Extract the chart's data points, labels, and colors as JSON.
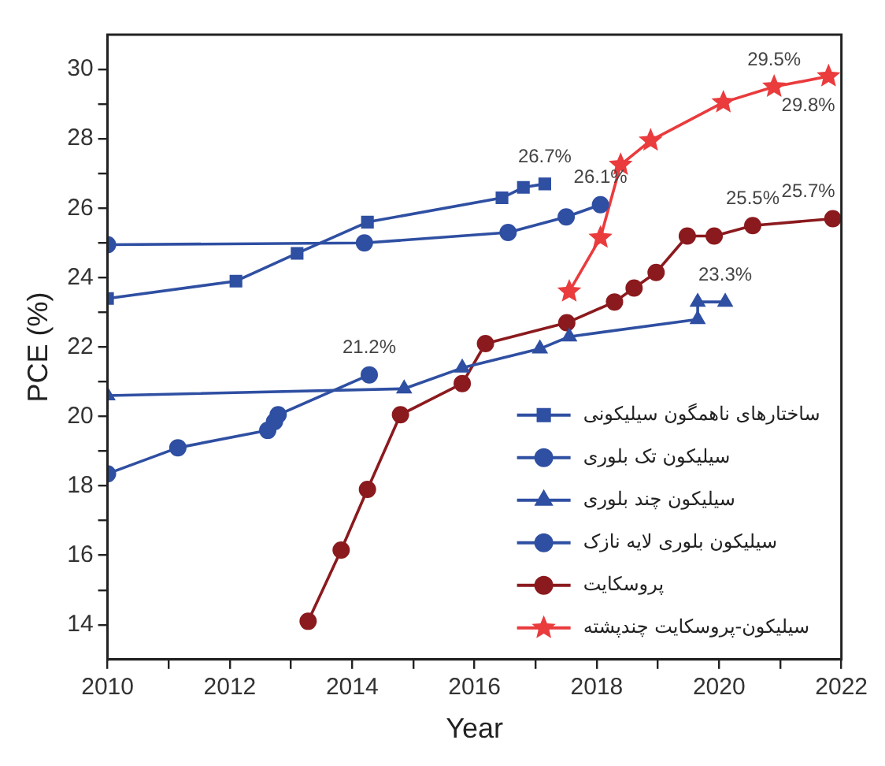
{
  "chart_data": {
    "type": "line",
    "xlabel": "Year",
    "ylabel": "PCE (%)",
    "xlim": [
      2010,
      2022
    ],
    "ylim": [
      13,
      31
    ],
    "xticks": [
      2010,
      {
        "value": 2011,
        "label": null
      },
      2012,
      {
        "value": 2013,
        "label": null
      },
      2014,
      {
        "value": 2015,
        "label": null
      },
      2016,
      {
        "value": 2017,
        "label": null
      },
      2018,
      {
        "value": 2019,
        "label": null
      },
      2020,
      {
        "value": 2021,
        "label": null
      },
      2022
    ],
    "yticks": [
      14,
      {
        "value": 15,
        "label": null
      },
      16,
      {
        "value": 17,
        "label": null
      },
      18,
      {
        "value": 19,
        "label": null
      },
      20,
      {
        "value": 21,
        "label": null
      },
      22,
      {
        "value": 23,
        "label": null
      },
      24,
      {
        "value": 25,
        "label": null
      },
      26,
      {
        "value": 27,
        "label": null
      },
      28,
      {
        "value": 29,
        "label": null
      },
      30
    ],
    "grid": false,
    "legend": "bottom right",
    "series": [
      {
        "name": "ساختارهای ناهمگون سیلیکونی",
        "color": "#2f4fa2",
        "marker": "square",
        "x": [
          2010,
          2012.1,
          2013.1,
          2014.25,
          2016.45,
          2016.8,
          2017.15
        ],
        "values": [
          23.4,
          23.9,
          24.7,
          25.6,
          26.3,
          26.6,
          26.7
        ],
        "value_labels": [
          null,
          null,
          null,
          null,
          null,
          null,
          "26.7%"
        ]
      },
      {
        "name": "سیلیکون تک بلوری",
        "color": "#2f4fa2",
        "marker": "circle",
        "x": [
          2010,
          2014.2,
          2016.55,
          2017.5,
          2018.06
        ],
        "values": [
          24.95,
          25.0,
          25.3,
          25.75,
          26.1
        ],
        "value_labels": [
          null,
          null,
          null,
          null,
          "26.1%"
        ]
      },
      {
        "name": "سیلیکون چند بلوری",
        "color": "#2f4fa2",
        "marker": "triangle",
        "x": [
          2010,
          2014.85,
          2015.8,
          2017.07,
          2017.55,
          2019.65,
          2019.65,
          2020.1
        ],
        "values": [
          20.6,
          20.8,
          21.4,
          21.95,
          22.3,
          22.8,
          23.3,
          23.3
        ],
        "value_labels": [
          null,
          null,
          null,
          null,
          null,
          null,
          null,
          "23.3%"
        ]
      },
      {
        "name": "سیلیکون بلوری لایه نازک",
        "color": "#2f4fa2",
        "marker": "circle",
        "x": [
          2010,
          2011.15,
          2012.62,
          2012.73,
          2012.79,
          2014.28
        ],
        "values": [
          18.35,
          19.1,
          19.6,
          19.85,
          20.05,
          21.2
        ],
        "value_labels": [
          null,
          null,
          null,
          null,
          null,
          "21.2%"
        ]
      },
      {
        "name": "پروسکایت",
        "color": "#8b1a1e",
        "marker": "circle",
        "x": [
          2013.28,
          2013.82,
          2014.25,
          2014.79,
          2015.8,
          2016.18,
          2017.51,
          2018.29,
          2018.61,
          2018.97,
          2019.48,
          2019.92,
          2020.55,
          2021.86
        ],
        "values": [
          14.1,
          16.15,
          17.9,
          20.05,
          20.95,
          22.1,
          22.7,
          23.3,
          23.7,
          24.15,
          25.2,
          25.2,
          25.5,
          25.7
        ],
        "value_labels": [
          null,
          null,
          null,
          null,
          null,
          null,
          null,
          null,
          null,
          null,
          null,
          null,
          "25.5%",
          "25.7%"
        ]
      },
      {
        "name": "سیلیکون-پروسکایت چندپشته",
        "color": "#ea3b3d",
        "marker": "star",
        "x": [
          2017.55,
          2018.06,
          2018.39,
          2018.88,
          2020.07,
          2020.9,
          2021.79
        ],
        "values": [
          23.6,
          25.15,
          27.25,
          27.95,
          29.05,
          29.5,
          29.8
        ],
        "value_labels": [
          null,
          null,
          null,
          null,
          null,
          "29.5%",
          "29.8%"
        ]
      }
    ]
  }
}
